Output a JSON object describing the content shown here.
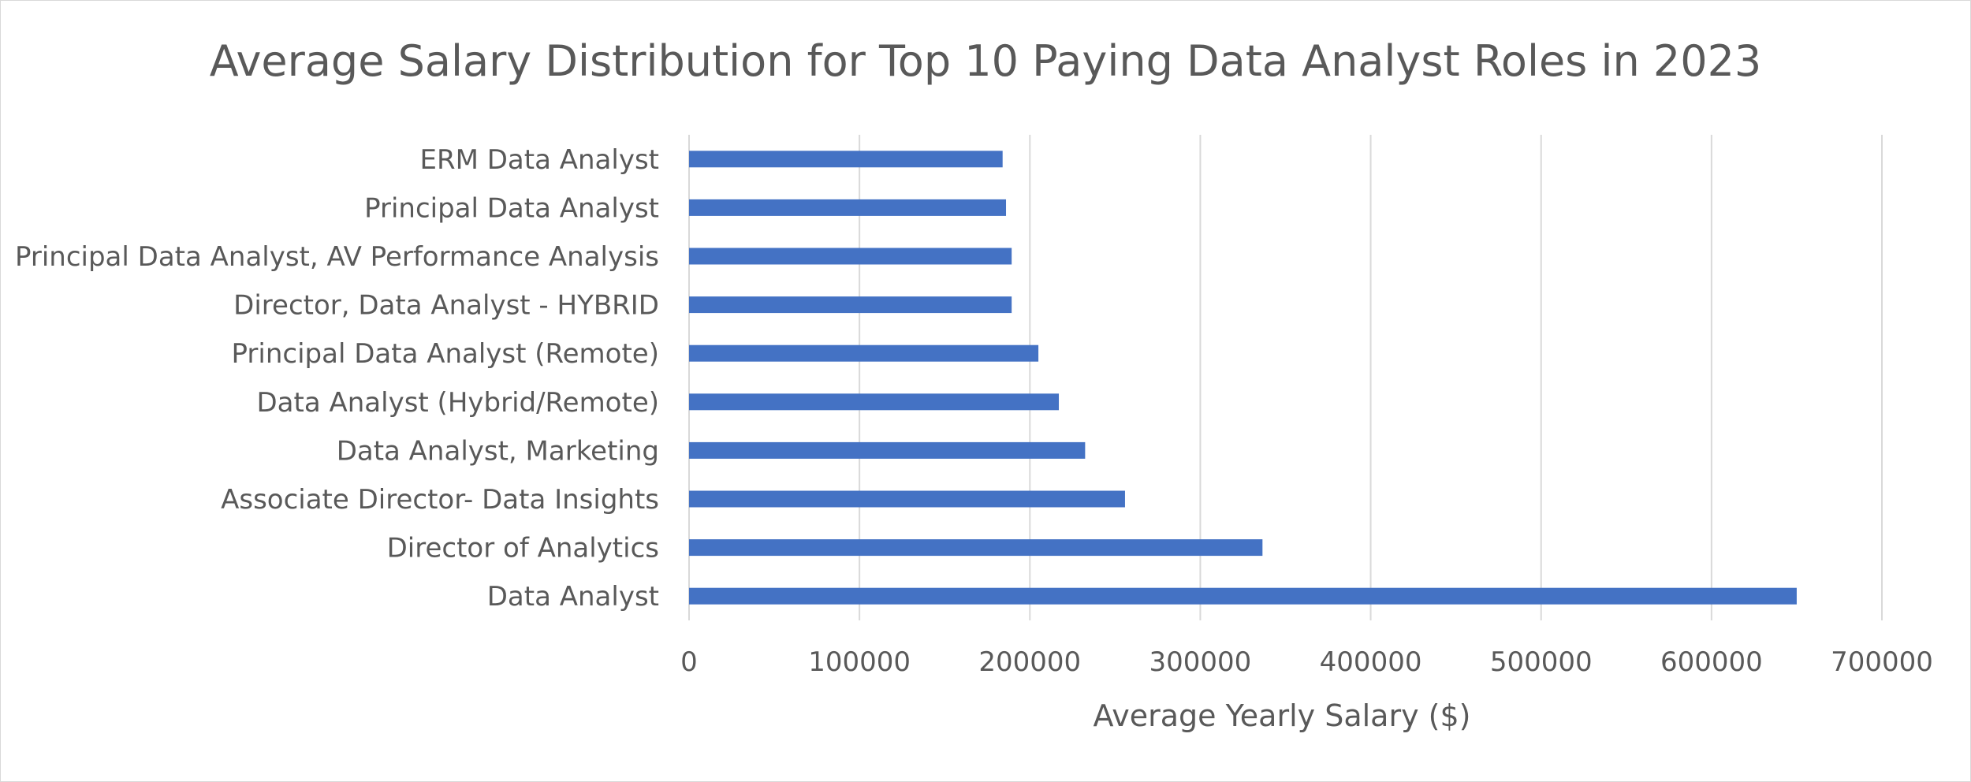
{
  "chart_data": {
    "type": "bar",
    "orientation": "horizontal",
    "title": "Average Salary Distribution for Top 10 Paying Data Analyst Roles in 2023",
    "xlabel": "Average Yearly Salary ($)",
    "ylabel": "",
    "categories": [
      "ERM Data Analyst",
      "Principal Data Analyst",
      "Principal Data Analyst, AV Performance Analysis",
      "Director, Data Analyst - HYBRID",
      "Principal Data Analyst (Remote)",
      "Data Analyst (Hybrid/Remote)",
      "Data Analyst, Marketing",
      "Associate Director- Data Insights",
      "Director of Analytics",
      "Data Analyst"
    ],
    "values": [
      184000,
      186000,
      189309,
      189309,
      205000,
      217000,
      232423,
      255830,
      336500,
      650000
    ],
    "xlim": [
      0,
      700000
    ],
    "xticks": [
      "0",
      "100000",
      "200000",
      "300000",
      "400000",
      "500000",
      "600000",
      "700000"
    ],
    "grid": "vertical",
    "legend": "none",
    "bar_color": "#4472C4",
    "grid_color": "#d9d9d9",
    "text_color": "#595959"
  }
}
